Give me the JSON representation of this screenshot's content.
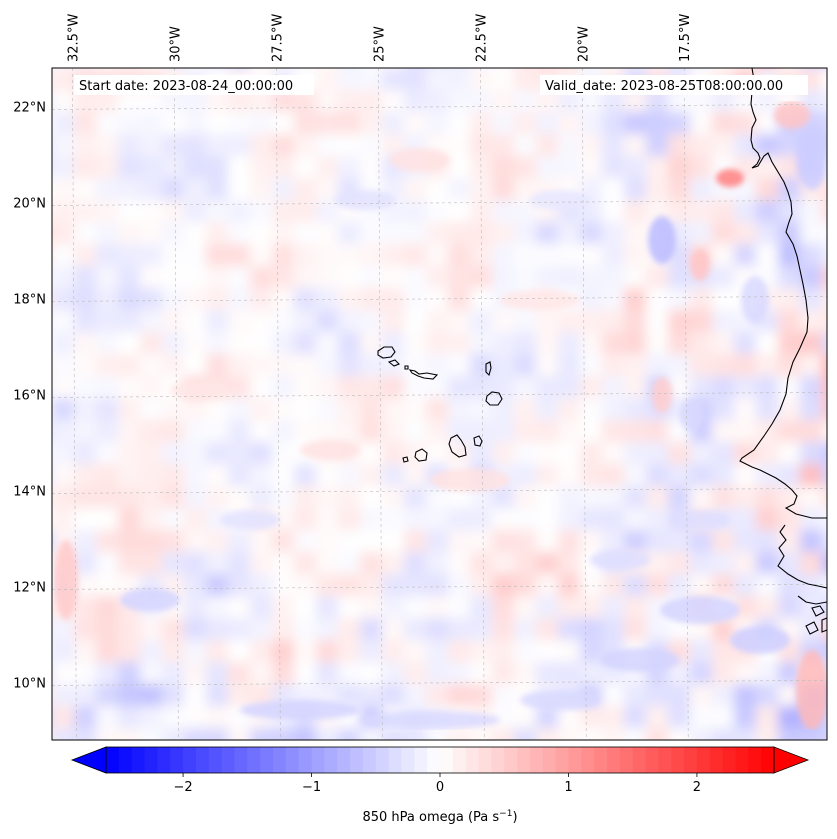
{
  "header": {
    "start_date": "Start date: 2023-08-24_00:00:00",
    "valid_date": "Valid_date: 2023-08-25T08:00:00.00"
  },
  "map": {
    "lon_range": [
      -33.0,
      -14.0
    ],
    "lat_range": [
      8.8,
      22.8
    ],
    "lon_ticks": [
      {
        "value": -32.5,
        "label": "32.5°W"
      },
      {
        "value": -30.0,
        "label": "30°W"
      },
      {
        "value": -27.5,
        "label": "27.5°W"
      },
      {
        "value": -25.0,
        "label": "25°W"
      },
      {
        "value": -22.5,
        "label": "22.5°W"
      },
      {
        "value": -20.0,
        "label": "20°W"
      },
      {
        "value": -17.5,
        "label": "17.5°W"
      }
    ],
    "lat_ticks": [
      {
        "value": 10,
        "label": "10°N"
      },
      {
        "value": 12,
        "label": "12°N"
      },
      {
        "value": 14,
        "label": "14°N"
      },
      {
        "value": 16,
        "label": "16°N"
      },
      {
        "value": 18,
        "label": "18°N"
      },
      {
        "value": 20,
        "label": "20°N"
      },
      {
        "value": 22,
        "label": "22°N"
      }
    ],
    "gridlines": true
  },
  "colorbar": {
    "label_prefix": "850 hPa omega (Pa s",
    "label_exponent": "−1",
    "label_suffix": ")",
    "range": [
      -2.6,
      2.6
    ],
    "ticks": [
      {
        "value": -2,
        "label": "−2"
      },
      {
        "value": -1,
        "label": "−1"
      },
      {
        "value": 0,
        "label": "0"
      },
      {
        "value": 1,
        "label": "1"
      },
      {
        "value": 2,
        "label": "2"
      }
    ],
    "cmap": "bwr",
    "colors": {
      "negative": "#0000ff",
      "neutral": "#ffffff",
      "positive": "#ff0000"
    },
    "extend": "both"
  }
}
